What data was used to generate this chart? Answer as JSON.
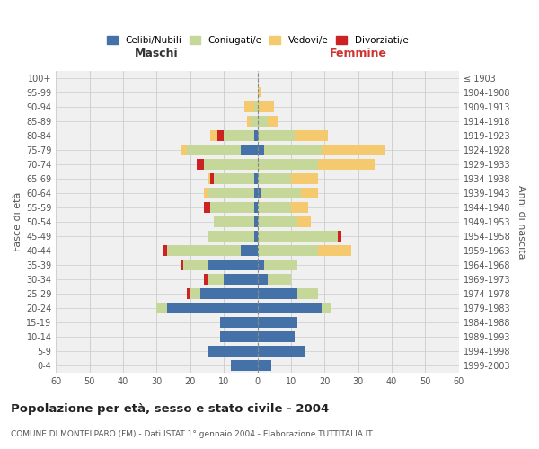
{
  "age_groups": [
    "0-4",
    "5-9",
    "10-14",
    "15-19",
    "20-24",
    "25-29",
    "30-34",
    "35-39",
    "40-44",
    "45-49",
    "50-54",
    "55-59",
    "60-64",
    "65-69",
    "70-74",
    "75-79",
    "80-84",
    "85-89",
    "90-94",
    "95-99",
    "100+"
  ],
  "birth_years": [
    "1999-2003",
    "1994-1998",
    "1989-1993",
    "1984-1988",
    "1979-1983",
    "1974-1978",
    "1969-1973",
    "1964-1968",
    "1959-1963",
    "1954-1958",
    "1949-1953",
    "1944-1948",
    "1939-1943",
    "1934-1938",
    "1929-1933",
    "1924-1928",
    "1919-1923",
    "1914-1918",
    "1909-1913",
    "1904-1908",
    "≤ 1903"
  ],
  "male": {
    "celibi": [
      8,
      15,
      11,
      11,
      27,
      17,
      10,
      15,
      5,
      1,
      1,
      1,
      1,
      1,
      0,
      5,
      1,
      0,
      0,
      0,
      0
    ],
    "coniugati": [
      0,
      0,
      0,
      0,
      3,
      3,
      5,
      7,
      22,
      14,
      12,
      13,
      14,
      12,
      16,
      16,
      9,
      2,
      1,
      0,
      0
    ],
    "vedovi": [
      0,
      0,
      0,
      0,
      0,
      0,
      0,
      0,
      0,
      0,
      0,
      0,
      1,
      1,
      0,
      2,
      2,
      1,
      3,
      0,
      0
    ],
    "divorziati": [
      0,
      0,
      0,
      0,
      0,
      1,
      1,
      1,
      1,
      0,
      0,
      2,
      0,
      1,
      2,
      0,
      2,
      0,
      0,
      0,
      0
    ]
  },
  "female": {
    "nubili": [
      4,
      14,
      11,
      12,
      19,
      12,
      3,
      2,
      0,
      0,
      0,
      0,
      1,
      0,
      0,
      2,
      0,
      0,
      0,
      0,
      0
    ],
    "coniugate": [
      0,
      0,
      0,
      0,
      3,
      6,
      7,
      10,
      18,
      24,
      12,
      10,
      12,
      10,
      18,
      17,
      11,
      3,
      0,
      0,
      0
    ],
    "vedove": [
      0,
      0,
      0,
      0,
      0,
      0,
      0,
      0,
      10,
      0,
      4,
      5,
      5,
      8,
      17,
      19,
      10,
      3,
      5,
      1,
      0
    ],
    "divorziate": [
      0,
      0,
      0,
      0,
      0,
      0,
      0,
      0,
      0,
      1,
      0,
      0,
      0,
      0,
      0,
      0,
      0,
      0,
      0,
      0,
      0
    ]
  },
  "colors": {
    "celibi_nubili": "#4472a8",
    "coniugati": "#c5d89a",
    "vedovi": "#f5c96e",
    "divorziati": "#cc2222"
  },
  "xlim": 60,
  "title": "Popolazione per età, sesso e stato civile - 2004",
  "subtitle": "COMUNE DI MONTELPARO (FM) - Dati ISTAT 1° gennaio 2004 - Elaborazione TUTTITALIA.IT",
  "xlabel_left": "Maschi",
  "xlabel_right": "Femmine",
  "ylabel_left": "Fasce di età",
  "ylabel_right": "Anni di nascita",
  "bg_color": "#f0f0f0",
  "grid_color": "#cccccc"
}
